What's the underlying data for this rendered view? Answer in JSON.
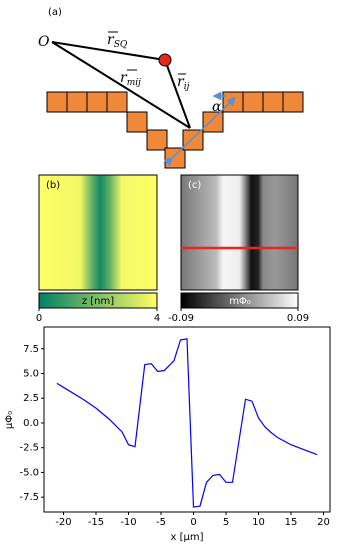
{
  "diagram": {
    "panel": "(a)",
    "origin": "O",
    "r_sq": {
      "base": "r",
      "sub": "SQ"
    },
    "r_mij": {
      "base": "r",
      "sub": "mij"
    },
    "r_ij": {
      "base": "r",
      "sub": "ij"
    },
    "angle": "α"
  },
  "panel_b": {
    "label": "(b)",
    "colorbar": {
      "label": "z [nm]",
      "lim": [
        0,
        4
      ],
      "ticks": [
        0,
        4
      ]
    }
  },
  "panel_c": {
    "label": "(c)",
    "colorbar": {
      "label": "mΦ₀",
      "lim": [
        -0.09,
        0.09
      ],
      "ticks": [
        -0.09,
        0.09
      ]
    }
  },
  "chart_data": {
    "type": "line",
    "xlabel": "x [μm]",
    "ylabel": "μΦ₀",
    "color": "#0000ff",
    "x": [
      -21,
      -19,
      -17,
      -15,
      -13,
      -11,
      -10,
      -9,
      -7.5,
      -6.5,
      -5.5,
      -4.5,
      -3,
      -2,
      -1,
      0,
      1,
      2,
      3,
      4,
      5,
      6,
      8,
      9,
      10,
      11,
      12,
      13,
      15,
      17,
      19
    ],
    "series": [
      {
        "values": [
          4.0,
          3.2,
          2.4,
          1.5,
          0.4,
          -0.9,
          -2.2,
          -2.4,
          5.9,
          6.0,
          5.2,
          5.3,
          6.3,
          8.4,
          8.5,
          -8.5,
          -8.4,
          -6.0,
          -5.3,
          -5.2,
          -6.0,
          -6.0,
          2.4,
          2.2,
          0.5,
          -0.4,
          -1.0,
          -1.5,
          -2.2,
          -2.7,
          -3.2
        ]
      }
    ],
    "xlim": [
      -23,
      21
    ],
    "xticks": [
      -20,
      -15,
      -10,
      -5,
      0,
      5,
      10,
      15,
      20
    ],
    "ylim": [
      -9.0,
      9.7
    ],
    "yticks": [
      -7.5,
      {
        "value": -5,
        "label": "-5.0"
      },
      -2.5,
      {
        "value": 0,
        "label": "0.0"
      },
      2.5,
      {
        "value": 5,
        "label": "5.0"
      },
      7.5
    ]
  }
}
